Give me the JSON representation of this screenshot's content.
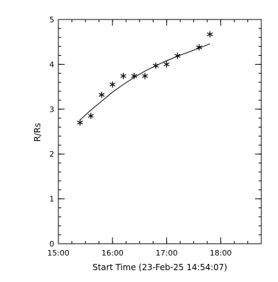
{
  "chart_data": {
    "type": "scatter",
    "title": "",
    "xlabel": "Start Time (23-Feb-25 14:54:07)",
    "ylabel": "R/Rs",
    "x_unit": "hours since 15:00",
    "xlim": [
      0.0,
      3.75
    ],
    "ylim": [
      0,
      5
    ],
    "x_ticks": [
      {
        "value": 0,
        "label": "15:00"
      },
      {
        "value": 1,
        "label": "16:00"
      },
      {
        "value": 2,
        "label": "17:00"
      },
      {
        "value": 3,
        "label": "18:00"
      }
    ],
    "y_ticks": [
      {
        "value": 0,
        "label": "0"
      },
      {
        "value": 1,
        "label": "1"
      },
      {
        "value": 2,
        "label": "2"
      },
      {
        "value": 3,
        "label": "3"
      },
      {
        "value": 4,
        "label": "4"
      },
      {
        "value": 5,
        "label": "5"
      }
    ],
    "series": [
      {
        "marker": "asterisk",
        "points": [
          {
            "x": 0.4,
            "y": 2.7
          },
          {
            "x": 0.6,
            "y": 2.85
          },
          {
            "x": 0.8,
            "y": 3.32
          },
          {
            "x": 1.0,
            "y": 3.55
          },
          {
            "x": 1.2,
            "y": 3.74
          },
          {
            "x": 1.4,
            "y": 3.74
          },
          {
            "x": 1.6,
            "y": 3.74
          },
          {
            "x": 1.8,
            "y": 3.97
          },
          {
            "x": 2.0,
            "y": 4.0
          },
          {
            "x": 2.2,
            "y": 4.19
          },
          {
            "x": 2.6,
            "y": 4.38
          },
          {
            "x": 2.8,
            "y": 4.67
          }
        ]
      }
    ],
    "fit_line": {
      "type": "curve",
      "points": [
        {
          "x": 0.4,
          "y": 2.76
        },
        {
          "x": 0.6,
          "y": 2.98
        },
        {
          "x": 0.8,
          "y": 3.18
        },
        {
          "x": 1.0,
          "y": 3.38
        },
        {
          "x": 1.2,
          "y": 3.55
        },
        {
          "x": 1.4,
          "y": 3.71
        },
        {
          "x": 1.6,
          "y": 3.85
        },
        {
          "x": 1.8,
          "y": 3.97
        },
        {
          "x": 2.0,
          "y": 4.08
        },
        {
          "x": 2.2,
          "y": 4.18
        },
        {
          "x": 2.4,
          "y": 4.27
        },
        {
          "x": 2.6,
          "y": 4.36
        },
        {
          "x": 2.8,
          "y": 4.46
        }
      ]
    },
    "grid": false,
    "legend": "none",
    "colors": {
      "foreground": "#000000",
      "background": "#ffffff"
    }
  }
}
